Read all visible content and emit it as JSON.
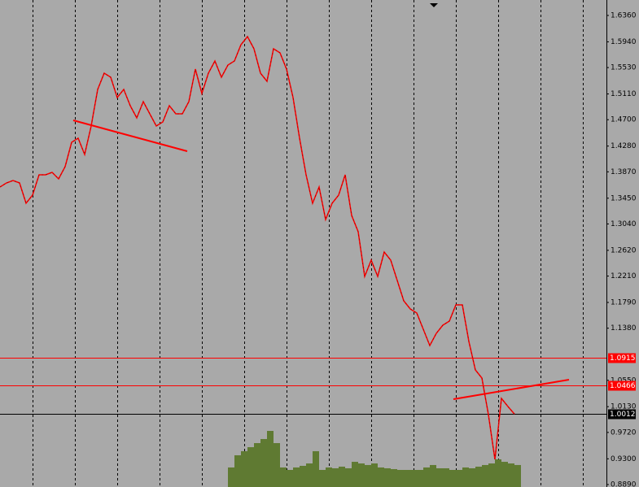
{
  "chart_data": {
    "type": "line",
    "ylim": [
      0.8851,
      1.6606
    ],
    "yticks": [
      {
        "value": 1.636,
        "label": "1.6360"
      },
      {
        "value": 1.594,
        "label": "1.5940"
      },
      {
        "value": 1.553,
        "label": "1.5530"
      },
      {
        "value": 1.511,
        "label": "1.5110"
      },
      {
        "value": 1.47,
        "label": "1.4700"
      },
      {
        "value": 1.428,
        "label": "1.4280"
      },
      {
        "value": 1.387,
        "label": "1.3870"
      },
      {
        "value": 1.345,
        "label": "1.3450"
      },
      {
        "value": 1.304,
        "label": "1.3040"
      },
      {
        "value": 1.262,
        "label": "1.2620"
      },
      {
        "value": 1.221,
        "label": "1.2210"
      },
      {
        "value": 1.179,
        "label": "1.1790"
      },
      {
        "value": 1.138,
        "label": "1.1380"
      },
      {
        "value": 1.055,
        "label": "1.0550"
      },
      {
        "value": 1.013,
        "label": "1.0130"
      },
      {
        "value": 0.972,
        "label": "0.9720"
      },
      {
        "value": 0.93,
        "label": "0.9300"
      },
      {
        "value": 0.889,
        "label": "0.8890"
      }
    ],
    "grid": true,
    "price": {
      "color": "#ff0000",
      "values": [
        1.3628,
        1.3693,
        1.3732,
        1.3693,
        1.3369,
        1.3499,
        1.3822,
        1.3822,
        1.3861,
        1.3758,
        1.3952,
        1.434,
        1.4405,
        1.4146,
        1.4599,
        1.5182,
        1.5441,
        1.5376,
        1.5052,
        1.5182,
        1.4923,
        1.4729,
        1.4988,
        1.4793,
        1.4599,
        1.4664,
        1.4923,
        1.4793,
        1.4793,
        1.4988,
        1.5506,
        1.5117,
        1.5441,
        1.5635,
        1.5376,
        1.557,
        1.5635,
        1.5894,
        1.6023,
        1.5829,
        1.5441,
        1.5311,
        1.5829,
        1.5764,
        1.5506,
        1.5052,
        1.4405,
        1.3822,
        1.3369,
        1.3628,
        1.311,
        1.3369,
        1.3499,
        1.3822,
        1.3175,
        1.2916,
        1.2204,
        1.2463,
        1.2204,
        1.2593,
        1.2463,
        1.2139,
        1.1816,
        1.1686,
        1.1622,
        1.1363,
        1.1104,
        1.1298,
        1.1427,
        1.1492,
        1.1751,
        1.1751,
        1.1168,
        1.0715,
        1.0586,
        1.0003,
        0.9291,
        1.0262,
        1.0133,
        1.0012
      ]
    },
    "volume": {
      "color": "#5f7a32",
      "values": [
        null,
        null,
        null,
        null,
        null,
        null,
        null,
        null,
        null,
        null,
        null,
        null,
        null,
        null,
        null,
        null,
        null,
        null,
        null,
        null,
        null,
        null,
        null,
        null,
        null,
        null,
        null,
        null,
        null,
        null,
        null,
        null,
        null,
        null,
        null,
        0.9162,
        0.9356,
        0.9421,
        0.9485,
        0.955,
        0.9615,
        0.9744,
        0.955,
        0.9162,
        0.9123,
        0.9162,
        0.9188,
        0.9226,
        0.9421,
        0.9123,
        0.9162,
        0.9149,
        0.9175,
        0.9149,
        0.9252,
        0.9226,
        0.9201,
        0.9226,
        0.9162,
        0.9149,
        0.9136,
        0.9123,
        0.9123,
        0.9123,
        0.9123,
        0.9162,
        0.9201,
        0.9149,
        0.9149,
        0.9123,
        0.9123,
        0.9162,
        0.9149,
        0.9175,
        0.9201,
        0.9226,
        0.9291,
        0.9252,
        0.9226,
        0.9201
      ]
    },
    "levels": [
      {
        "value": 1.0915,
        "color": "#ff0000"
      },
      {
        "value": 1.0466,
        "color": "#ff0000"
      },
      {
        "value": 1.0012,
        "color": "#000000"
      }
    ]
  }
}
